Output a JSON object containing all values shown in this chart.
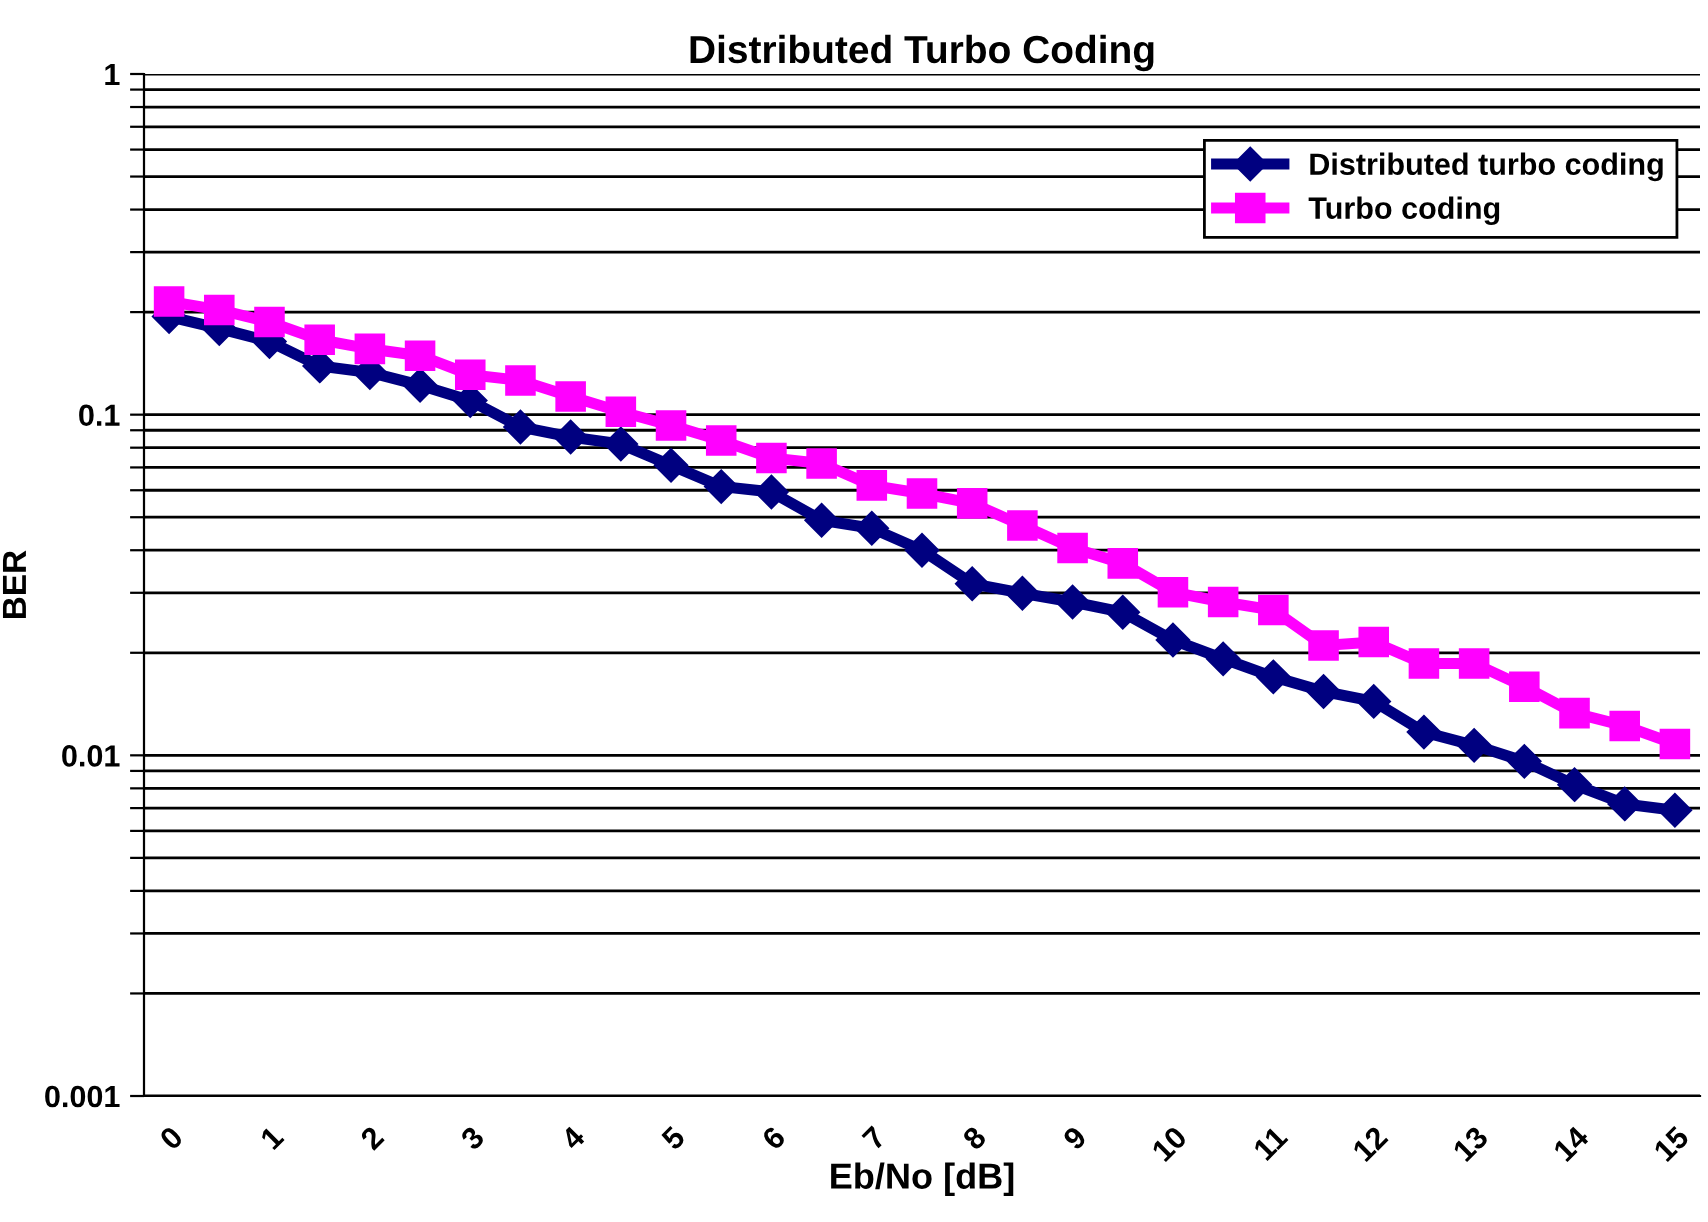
{
  "chart_data": {
    "type": "line",
    "title": "Distributed Turbo Coding",
    "xlabel": "Eb/No [dB]",
    "ylabel": "BER",
    "x": [
      0,
      0.5,
      1,
      1.5,
      2,
      2.5,
      3,
      3.5,
      4,
      4.5,
      5,
      5.5,
      6,
      6.5,
      7,
      7.5,
      8,
      8.5,
      9,
      9.5,
      10,
      10.5,
      11,
      11.5,
      12,
      12.5,
      13,
      13.5,
      14,
      14.5,
      15
    ],
    "series": [
      {
        "name": "Distributed turbo coding",
        "color": "#000080",
        "marker": "diamond",
        "values": [
          0.194,
          0.179,
          0.164,
          0.139,
          0.133,
          0.122,
          0.11,
          0.092,
          0.086,
          0.082,
          0.071,
          0.0615,
          0.0593,
          0.049,
          0.0464,
          0.04,
          0.0319,
          0.0299,
          0.0282,
          0.0263,
          0.0218,
          0.0192,
          0.017,
          0.0154,
          0.0144,
          0.0117,
          0.0107,
          0.0096,
          0.0082,
          0.0072,
          0.0069
        ]
      },
      {
        "name": "Turbo coding",
        "color": "#ff00ff",
        "marker": "square",
        "values": [
          0.215,
          0.203,
          0.187,
          0.166,
          0.156,
          0.149,
          0.131,
          0.126,
          0.113,
          0.102,
          0.093,
          0.084,
          0.0746,
          0.0719,
          0.062,
          0.0587,
          0.0549,
          0.0473,
          0.0406,
          0.0366,
          0.0301,
          0.0282,
          0.0267,
          0.021,
          0.0215,
          0.0186,
          0.0186,
          0.0159,
          0.0133,
          0.0122,
          0.0108
        ]
      }
    ],
    "log": "y",
    "xlim": [
      -0.25,
      15.25
    ],
    "xticks": [
      0,
      1,
      2,
      3,
      4,
      5,
      6,
      7,
      8,
      9,
      10,
      11,
      12,
      13,
      14,
      15
    ],
    "ylim": [
      0.001,
      1
    ],
    "yticks": [
      0.001,
      {
        "value": 0.002,
        "label": null
      },
      {
        "value": 0.003,
        "label": null
      },
      {
        "value": 0.004,
        "label": null
      },
      {
        "value": 0.005,
        "label": null
      },
      {
        "value": 0.006,
        "label": null
      },
      {
        "value": 0.007,
        "label": null
      },
      {
        "value": 0.008,
        "label": null
      },
      {
        "value": 0.009,
        "label": null
      },
      0.01,
      {
        "value": 0.02,
        "label": null
      },
      {
        "value": 0.03,
        "label": null
      },
      {
        "value": 0.04,
        "label": null
      },
      {
        "value": 0.05,
        "label": null
      },
      {
        "value": 0.06,
        "label": null
      },
      {
        "value": 0.07,
        "label": null
      },
      {
        "value": 0.08,
        "label": null
      },
      {
        "value": 0.09,
        "label": null
      },
      0.1,
      {
        "value": 0.2,
        "label": null
      },
      {
        "value": 0.3,
        "label": null
      },
      {
        "value": 0.4,
        "label": null
      },
      {
        "value": 0.5,
        "label": null
      },
      {
        "value": 0.6,
        "label": null
      },
      {
        "value": 0.7,
        "label": null
      },
      {
        "value": 0.8,
        "label": null
      },
      {
        "value": 0.9,
        "label": null
      },
      1
    ],
    "grid": "y",
    "legend": "top right",
    "line_style": "solid"
  }
}
